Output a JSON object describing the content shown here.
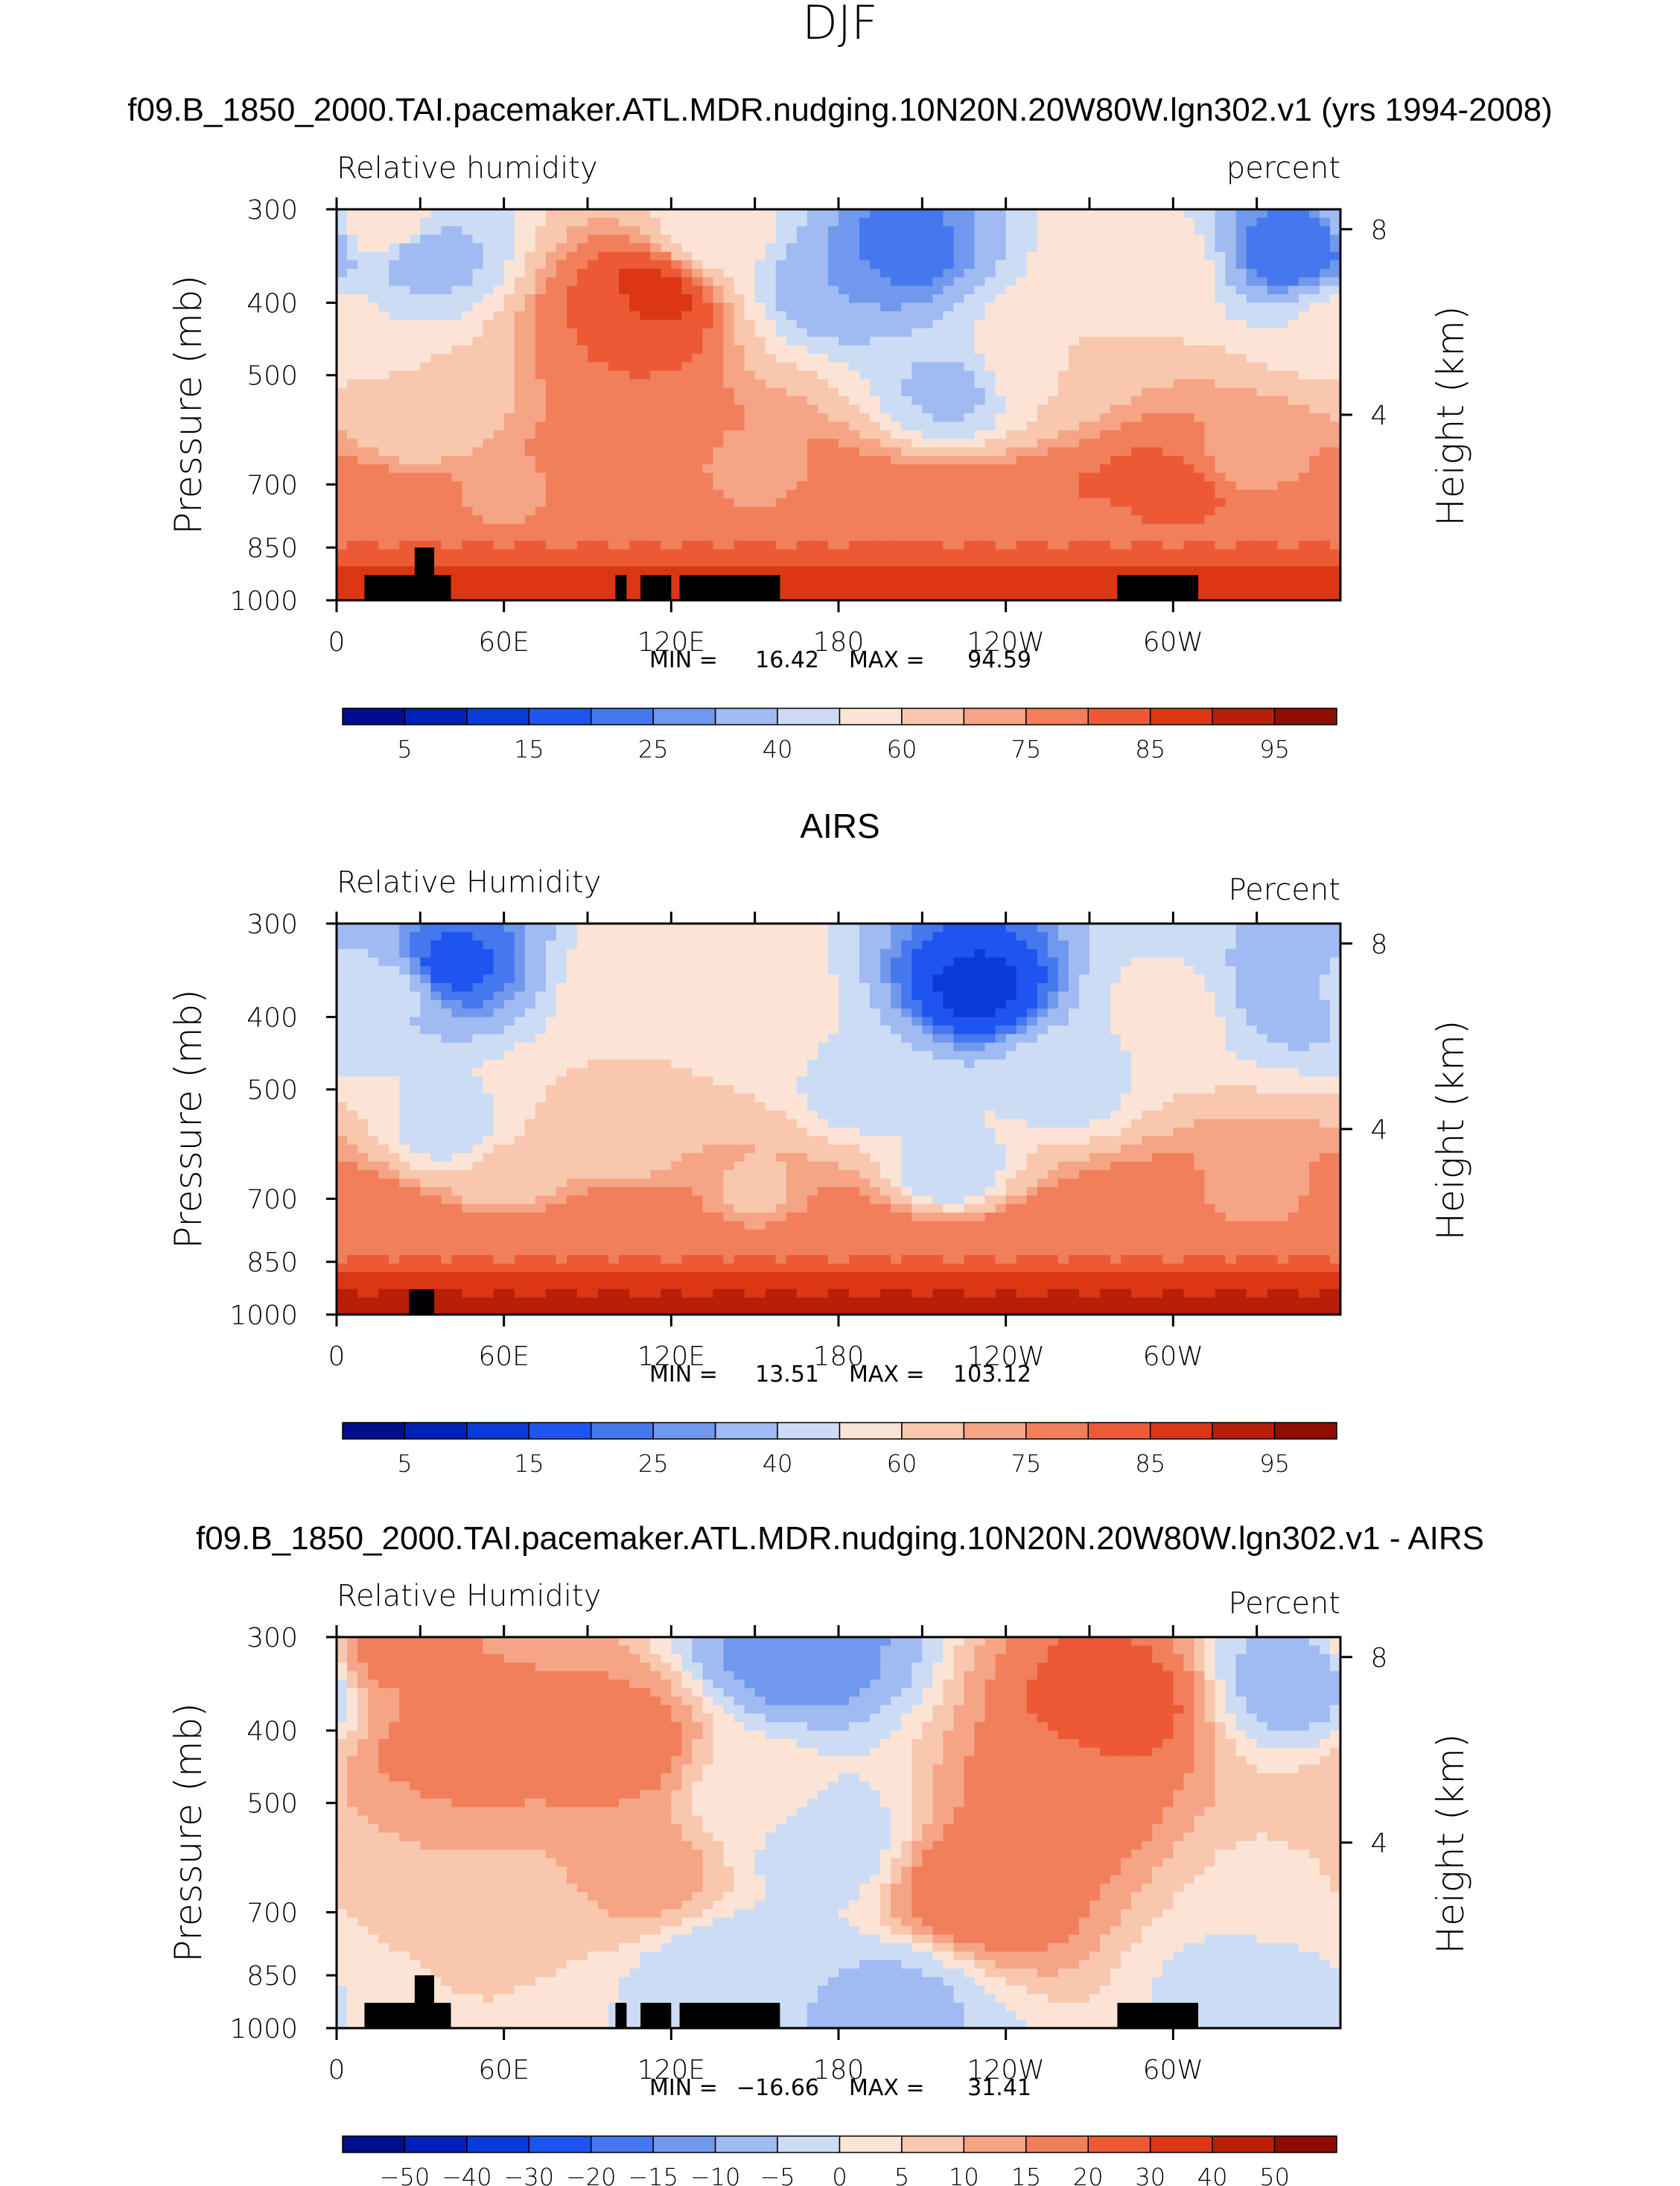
{
  "chart_data": {
    "type": "heatmap",
    "title": "DJF",
    "panels": [
      {
        "title": "f09.B_1850_2000.TAI.pacemaker.ATL.MDR.nudging.10N20N.20W80W.lgn302.v1 (yrs 1994-2008)",
        "left_label": "Relative humidity",
        "right_label": "percent",
        "ylabel": "Pressure (mb)",
        "ylabel2": "Height (km)",
        "pressure_ticks": [
          "300",
          "400",
          "500",
          "700",
          "850",
          "1000"
        ],
        "height_ticks": [
          "8",
          "4"
        ],
        "lon_ticks": [
          "0",
          "60E",
          "120E",
          "180",
          "120W",
          "60W"
        ],
        "min_label": "MIN =",
        "min": "16.42",
        "max_label": "MAX =",
        "max": "94.59",
        "colorbar_labels": [
          "5",
          "15",
          "25",
          "40",
          "60",
          "75",
          "85",
          "95"
        ],
        "regions": [
          {
            "lon": 0,
            "hgt": 6,
            "v": 52
          },
          {
            "lon": 20,
            "hgt": 8,
            "v": 58
          },
          {
            "lon": 30,
            "hgt": 7.5,
            "v": 34
          },
          {
            "lon": 30,
            "hgt": 4,
            "v": 60
          },
          {
            "lon": 100,
            "hgt": 6,
            "v": 80
          },
          {
            "lon": 112,
            "hgt": 6.5,
            "v": 87
          },
          {
            "lon": 140,
            "hgt": 8,
            "v": 52
          },
          {
            "lon": 180,
            "hgt": 7,
            "v": 30
          },
          {
            "lon": 200,
            "hgt": 7.5,
            "v": 22
          },
          {
            "lon": 220,
            "hgt": 4.5,
            "v": 38
          },
          {
            "lon": 250,
            "hgt": 5,
            "v": 60
          },
          {
            "lon": 290,
            "hgt": 7,
            "v": 58
          },
          {
            "lon": 345,
            "hgt": 7.5,
            "v": 20
          },
          {
            "lon": 300,
            "hgt": 2,
            "v": 84
          },
          {
            "lon": 200,
            "hgt": 1,
            "v": 83
          },
          {
            "lon": 60,
            "hgt": 2,
            "v": 70
          },
          {
            "lon": 150,
            "hgt": 2.5,
            "v": 72
          },
          {
            "lon": 330,
            "hgt": 3,
            "v": 72
          }
        ],
        "boundary_rows": [
          {
            "hgt": 0.3,
            "base": 90
          },
          {
            "hgt": 0.8,
            "base": 85
          },
          {
            "hgt": 1.4,
            "base": 78
          }
        ],
        "topography": [
          {
            "lon0": 10,
            "lon1": 41,
            "p": 925
          },
          {
            "lon0": 28,
            "lon1": 35,
            "p": 850
          },
          {
            "lon0": 100,
            "lon1": 104,
            "p": 925
          },
          {
            "lon0": 109,
            "lon1": 120,
            "p": 925
          },
          {
            "lon0": 123,
            "lon1": 159,
            "p": 925
          },
          {
            "lon0": 280,
            "lon1": 309,
            "p": 925
          }
        ]
      },
      {
        "title": "AIRS",
        "left_label": "Relative Humidity",
        "right_label": "Percent",
        "ylabel": "Pressure (mb)",
        "ylabel2": "Height (km)",
        "pressure_ticks": [
          "300",
          "400",
          "500",
          "700",
          "850",
          "1000"
        ],
        "height_ticks": [
          "8",
          "4"
        ],
        "lon_ticks": [
          "0",
          "60E",
          "120E",
          "180",
          "120W",
          "60W"
        ],
        "min_label": "MIN =",
        "min": "13.51",
        "max_label": "MAX =",
        "max": "103.12",
        "colorbar_labels": [
          "5",
          "15",
          "25",
          "40",
          "60",
          "75",
          "85",
          "95"
        ],
        "regions": [
          {
            "lon": 0,
            "hgt": 7,
            "v": 44
          },
          {
            "lon": 20,
            "hgt": 7,
            "v": 42
          },
          {
            "lon": 40,
            "hgt": 7.5,
            "v": 18
          },
          {
            "lon": 40,
            "hgt": 4,
            "v": 45
          },
          {
            "lon": 110,
            "hgt": 7,
            "v": 56
          },
          {
            "lon": 100,
            "hgt": 4,
            "v": 60
          },
          {
            "lon": 150,
            "hgt": 6,
            "v": 58
          },
          {
            "lon": 190,
            "hgt": 5,
            "v": 42
          },
          {
            "lon": 230,
            "hgt": 7,
            "v": 14
          },
          {
            "lon": 220,
            "hgt": 3,
            "v": 40
          },
          {
            "lon": 260,
            "hgt": 5,
            "v": 45
          },
          {
            "lon": 300,
            "hgt": 6.5,
            "v": 52
          },
          {
            "lon": 345,
            "hgt": 7,
            "v": 30
          },
          {
            "lon": 150,
            "hgt": 2.5,
            "v": 68
          },
          {
            "lon": 60,
            "hgt": 3,
            "v": 62
          },
          {
            "lon": 330,
            "hgt": 2.5,
            "v": 70
          },
          {
            "lon": 5,
            "hgt": 2,
            "v": 78
          }
        ],
        "boundary_rows": [
          {
            "hgt": 0.3,
            "base": 92
          },
          {
            "hgt": 0.8,
            "base": 86
          },
          {
            "hgt": 1.4,
            "base": 78
          }
        ],
        "topography": [
          {
            "lon0": 26,
            "lon1": 35,
            "p": 925
          }
        ]
      },
      {
        "title": "f09.B_1850_2000.TAI.pacemaker.ATL.MDR.nudging.10N20N.20W80W.lgn302.v1 - AIRS",
        "left_label": "Relative Humidity",
        "right_label": "Percent",
        "ylabel": "Pressure (mb)",
        "ylabel2": "Height (km)",
        "pressure_ticks": [
          "300",
          "400",
          "500",
          "700",
          "850",
          "1000"
        ],
        "height_ticks": [
          "8",
          "4"
        ],
        "lon_ticks": [
          "0",
          "60E",
          "120E",
          "180",
          "120W",
          "60W"
        ],
        "min_label": "MIN =",
        "min": "−16.66",
        "max_label": "MAX =",
        "max": "31.41",
        "colorbar_labels": [
          "−50",
          "−40",
          "−30",
          "−20",
          "−15",
          "−10",
          "−5",
          "0",
          "5",
          "10",
          "15",
          "20",
          "30",
          "40",
          "50"
        ],
        "regions": [
          {
            "lon": 20,
            "hgt": 8,
            "v": 16
          },
          {
            "lon": 40,
            "hgt": 6,
            "v": 18
          },
          {
            "lon": 15,
            "hgt": 4,
            "v": 10
          },
          {
            "lon": 100,
            "hgt": 6,
            "v": 18
          },
          {
            "lon": 110,
            "hgt": 3.5,
            "v": 12
          },
          {
            "lon": 165,
            "hgt": 8,
            "v": -12
          },
          {
            "lon": 150,
            "hgt": 5,
            "v": 2
          },
          {
            "lon": 175,
            "hgt": 4,
            "v": -3
          },
          {
            "lon": 140,
            "hgt": 1,
            "v": -5
          },
          {
            "lon": 230,
            "hgt": 3,
            "v": 20
          },
          {
            "lon": 280,
            "hgt": 7,
            "v": 22
          },
          {
            "lon": 260,
            "hgt": 5,
            "v": 18
          },
          {
            "lon": 345,
            "hgt": 7.5,
            "v": -8
          },
          {
            "lon": 340,
            "hgt": 3,
            "v": 4
          },
          {
            "lon": 60,
            "hgt": 2,
            "v": 5
          },
          {
            "lon": 330,
            "hgt": 1,
            "v": -2
          },
          {
            "lon": 200,
            "hgt": 0.5,
            "v": -6
          }
        ],
        "boundary_rows": [],
        "topography": [
          {
            "lon0": 10,
            "lon1": 41,
            "p": 925
          },
          {
            "lon0": 28,
            "lon1": 35,
            "p": 850
          },
          {
            "lon0": 100,
            "lon1": 104,
            "p": 925
          },
          {
            "lon0": 109,
            "lon1": 120,
            "p": 925
          },
          {
            "lon0": 123,
            "lon1": 159,
            "p": 925
          },
          {
            "lon0": 280,
            "lon1": 309,
            "p": 925
          }
        ]
      }
    ],
    "colorbar_rh": {
      "levels": [
        5,
        10,
        15,
        20,
        25,
        30,
        40,
        50,
        60,
        70,
        75,
        80,
        85,
        90,
        95
      ],
      "colors": [
        "#000e8c",
        "#0021b8",
        "#0a3ad8",
        "#1e55f0",
        "#4577ee",
        "#7098ec",
        "#a0baf2",
        "#ccdcf5",
        "#fbe4d6",
        "#f8c7ae",
        "#f6a486",
        "#f27f5c",
        "#ec5a35",
        "#db3714",
        "#b91f08",
        "#8f0d02"
      ]
    },
    "colorbar_diff": {
      "levels": [
        -50,
        -40,
        -30,
        -20,
        -15,
        -10,
        -5,
        0,
        5,
        10,
        15,
        20,
        30,
        40,
        50
      ],
      "colors": [
        "#000e8c",
        "#0021b8",
        "#0a3ad8",
        "#1e55f0",
        "#4577ee",
        "#7098ec",
        "#a0baf2",
        "#ccdcf5",
        "#fbe4d6",
        "#f8c7ae",
        "#f6a486",
        "#f27f5c",
        "#ec5a35",
        "#db3714",
        "#b91f08",
        "#8f0d02"
      ]
    },
    "xlim": [
      0,
      360
    ],
    "ylim_pressure": [
      1000,
      300
    ]
  }
}
